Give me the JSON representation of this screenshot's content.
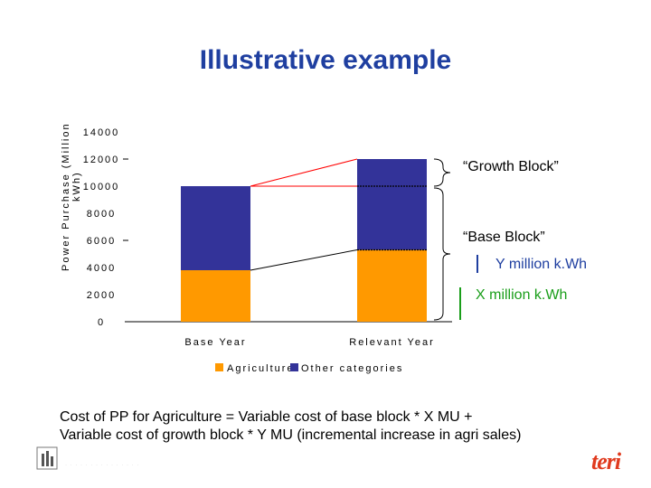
{
  "slide": {
    "title": "Illustrative example",
    "formula_line1": "Cost of PP for Agriculture = Variable cost of base block * X MU +",
    "formula_line2": "Variable cost of growth block * Y MU (incremental increase in agri sales)",
    "footer_logo_text": "teri"
  },
  "annotations": {
    "growth_block": "“Growth Block”",
    "base_block": "“Base Block”",
    "y_label": "Y million k.Wh",
    "x_label": "X million k.Wh"
  },
  "colors": {
    "agriculture": "#ff9900",
    "other": "#333399",
    "title": "#1f3fa0",
    "red_line": "#ff0000",
    "green_bracket": "#1a9e1a",
    "blue_bracket": "#1f3fa0"
  },
  "chart_data": {
    "type": "bar",
    "stacked": true,
    "categories": [
      "Base Year",
      "Relevant Year"
    ],
    "series": [
      {
        "name": "Agriculture",
        "values": [
          3800,
          5300
        ]
      },
      {
        "name": "Other categories",
        "values": [
          6200,
          6700
        ]
      }
    ],
    "ylabel": "Power Purchase (Million kWh)",
    "ylim": [
      0,
      14000
    ],
    "yticks": [
      0,
      2000,
      4000,
      6000,
      8000,
      10000,
      12000,
      14000
    ],
    "ytick_labels": [
      "0",
      "2000",
      "4000",
      "6000",
      "8000",
      "10000",
      "12000",
      "14000"
    ],
    "legend_position": "bottom",
    "grid": false
  }
}
